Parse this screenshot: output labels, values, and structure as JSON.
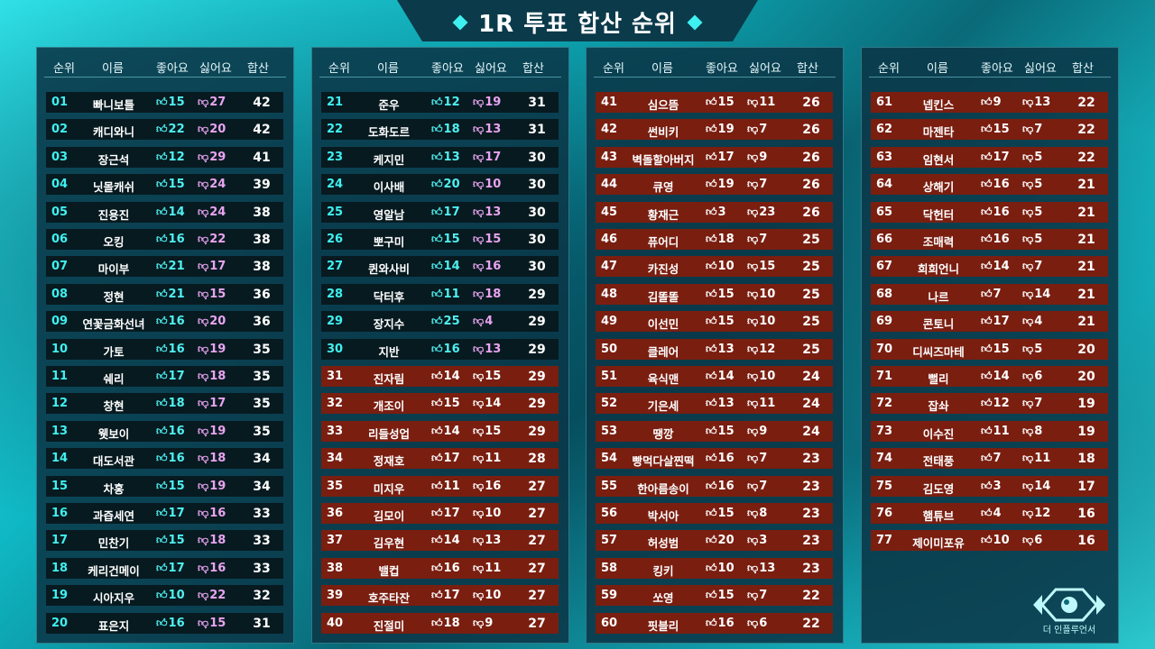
{
  "title": "1R 투표 합산 순위",
  "headers": {
    "rank": "순위",
    "name": "이름",
    "like": "좋아요",
    "dislike": "싫어요",
    "total": "합산"
  },
  "icons": {
    "like": "thumbs-up-icon",
    "dislike": "thumbs-down-icon"
  },
  "colors": {
    "top30_row": "#071a20",
    "bottom_row": "#7a1e10",
    "like": "#4ff0f0",
    "dislike": "#e9a4f0"
  },
  "columns": [
    [
      {
        "rank": "01",
        "name": "빠니보틀",
        "like": "15",
        "dislike": "27",
        "total": "42",
        "style": "t"
      },
      {
        "rank": "02",
        "name": "캐디와니",
        "like": "22",
        "dislike": "20",
        "total": "42",
        "style": "t"
      },
      {
        "rank": "03",
        "name": "장근석",
        "like": "12",
        "dislike": "29",
        "total": "41",
        "style": "t"
      },
      {
        "rank": "04",
        "name": "닛몰캐쉬",
        "like": "15",
        "dislike": "24",
        "total": "39",
        "style": "t"
      },
      {
        "rank": "05",
        "name": "진용진",
        "like": "14",
        "dislike": "24",
        "total": "38",
        "style": "t"
      },
      {
        "rank": "06",
        "name": "오킹",
        "like": "16",
        "dislike": "22",
        "total": "38",
        "style": "t"
      },
      {
        "rank": "07",
        "name": "마이부",
        "like": "21",
        "dislike": "17",
        "total": "38",
        "style": "t"
      },
      {
        "rank": "08",
        "name": "정현",
        "like": "21",
        "dislike": "15",
        "total": "36",
        "style": "t"
      },
      {
        "rank": "09",
        "name": "연꽃금화선녀",
        "like": "16",
        "dislike": "20",
        "total": "36",
        "style": "t"
      },
      {
        "rank": "10",
        "name": "가토",
        "like": "16",
        "dislike": "19",
        "total": "35",
        "style": "t"
      },
      {
        "rank": "11",
        "name": "쉐리",
        "like": "17",
        "dislike": "18",
        "total": "35",
        "style": "t"
      },
      {
        "rank": "12",
        "name": "창현",
        "like": "18",
        "dislike": "17",
        "total": "35",
        "style": "t"
      },
      {
        "rank": "13",
        "name": "웻보이",
        "like": "16",
        "dislike": "19",
        "total": "35",
        "style": "t"
      },
      {
        "rank": "14",
        "name": "대도서관",
        "like": "16",
        "dislike": "18",
        "total": "34",
        "style": "t"
      },
      {
        "rank": "15",
        "name": "차홍",
        "like": "15",
        "dislike": "19",
        "total": "34",
        "style": "t"
      },
      {
        "rank": "16",
        "name": "과즙세연",
        "like": "17",
        "dislike": "16",
        "total": "33",
        "style": "t"
      },
      {
        "rank": "17",
        "name": "민찬기",
        "like": "15",
        "dislike": "18",
        "total": "33",
        "style": "t"
      },
      {
        "rank": "18",
        "name": "케리건메이",
        "like": "17",
        "dislike": "16",
        "total": "33",
        "style": "t"
      },
      {
        "rank": "19",
        "name": "시아지우",
        "like": "10",
        "dislike": "22",
        "total": "32",
        "style": "t"
      },
      {
        "rank": "20",
        "name": "표은지",
        "like": "16",
        "dislike": "15",
        "total": "31",
        "style": "t"
      }
    ],
    [
      {
        "rank": "21",
        "name": "준우",
        "like": "12",
        "dislike": "19",
        "total": "31",
        "style": "t"
      },
      {
        "rank": "22",
        "name": "도화도르",
        "like": "18",
        "dislike": "13",
        "total": "31",
        "style": "t"
      },
      {
        "rank": "23",
        "name": "케지민",
        "like": "13",
        "dislike": "17",
        "total": "30",
        "style": "t"
      },
      {
        "rank": "24",
        "name": "이사배",
        "like": "20",
        "dislike": "10",
        "total": "30",
        "style": "t"
      },
      {
        "rank": "25",
        "name": "영알남",
        "like": "17",
        "dislike": "13",
        "total": "30",
        "style": "t"
      },
      {
        "rank": "26",
        "name": "뽀구미",
        "like": "15",
        "dislike": "15",
        "total": "30",
        "style": "t"
      },
      {
        "rank": "27",
        "name": "퀸와사비",
        "like": "14",
        "dislike": "16",
        "total": "30",
        "style": "t"
      },
      {
        "rank": "28",
        "name": "닥터후",
        "like": "11",
        "dislike": "18",
        "total": "29",
        "style": "t"
      },
      {
        "rank": "29",
        "name": "장지수",
        "like": "25",
        "dislike": "4",
        "total": "29",
        "style": "t"
      },
      {
        "rank": "30",
        "name": "지반",
        "like": "16",
        "dislike": "13",
        "total": "29",
        "style": "t"
      },
      {
        "rank": "31",
        "name": "진자림",
        "like": "14",
        "dislike": "15",
        "total": "29",
        "style": "r"
      },
      {
        "rank": "32",
        "name": "개조이",
        "like": "15",
        "dislike": "14",
        "total": "29",
        "style": "r"
      },
      {
        "rank": "33",
        "name": "리들성업",
        "like": "14",
        "dislike": "15",
        "total": "29",
        "style": "r"
      },
      {
        "rank": "34",
        "name": "정재호",
        "like": "17",
        "dislike": "11",
        "total": "28",
        "style": "r"
      },
      {
        "rank": "35",
        "name": "미지우",
        "like": "11",
        "dislike": "16",
        "total": "27",
        "style": "r"
      },
      {
        "rank": "36",
        "name": "김모이",
        "like": "17",
        "dislike": "10",
        "total": "27",
        "style": "r"
      },
      {
        "rank": "37",
        "name": "김우현",
        "like": "14",
        "dislike": "13",
        "total": "27",
        "style": "r"
      },
      {
        "rank": "38",
        "name": "밸컵",
        "like": "16",
        "dislike": "11",
        "total": "27",
        "style": "r"
      },
      {
        "rank": "39",
        "name": "호주타잔",
        "like": "17",
        "dislike": "10",
        "total": "27",
        "style": "r"
      },
      {
        "rank": "40",
        "name": "진절미",
        "like": "18",
        "dislike": "9",
        "total": "27",
        "style": "r"
      }
    ],
    [
      {
        "rank": "41",
        "name": "심으뜸",
        "like": "15",
        "dislike": "11",
        "total": "26",
        "style": "r"
      },
      {
        "rank": "42",
        "name": "썬비키",
        "like": "19",
        "dislike": "7",
        "total": "26",
        "style": "r"
      },
      {
        "rank": "43",
        "name": "벽돌할아버지",
        "like": "17",
        "dislike": "9",
        "total": "26",
        "style": "r"
      },
      {
        "rank": "44",
        "name": "큐영",
        "like": "19",
        "dislike": "7",
        "total": "26",
        "style": "r"
      },
      {
        "rank": "45",
        "name": "황재근",
        "like": "3",
        "dislike": "23",
        "total": "26",
        "style": "r"
      },
      {
        "rank": "46",
        "name": "퓨어디",
        "like": "18",
        "dislike": "7",
        "total": "25",
        "style": "r"
      },
      {
        "rank": "47",
        "name": "카진성",
        "like": "10",
        "dislike": "15",
        "total": "25",
        "style": "r"
      },
      {
        "rank": "48",
        "name": "김똘똘",
        "like": "15",
        "dislike": "10",
        "total": "25",
        "style": "r"
      },
      {
        "rank": "49",
        "name": "이선민",
        "like": "15",
        "dislike": "10",
        "total": "25",
        "style": "r"
      },
      {
        "rank": "50",
        "name": "클레어",
        "like": "13",
        "dislike": "12",
        "total": "25",
        "style": "r"
      },
      {
        "rank": "51",
        "name": "육식맨",
        "like": "14",
        "dislike": "10",
        "total": "24",
        "style": "r"
      },
      {
        "rank": "52",
        "name": "기은세",
        "like": "13",
        "dislike": "11",
        "total": "24",
        "style": "r"
      },
      {
        "rank": "53",
        "name": "땡깡",
        "like": "15",
        "dislike": "9",
        "total": "24",
        "style": "r"
      },
      {
        "rank": "54",
        "name": "빵먹다살찐떡",
        "like": "16",
        "dislike": "7",
        "total": "23",
        "style": "r"
      },
      {
        "rank": "55",
        "name": "한아름송이",
        "like": "16",
        "dislike": "7",
        "total": "23",
        "style": "r"
      },
      {
        "rank": "56",
        "name": "박서아",
        "like": "15",
        "dislike": "8",
        "total": "23",
        "style": "r"
      },
      {
        "rank": "57",
        "name": "허성범",
        "like": "20",
        "dislike": "3",
        "total": "23",
        "style": "r"
      },
      {
        "rank": "58",
        "name": "킹키",
        "like": "10",
        "dislike": "13",
        "total": "23",
        "style": "r"
      },
      {
        "rank": "59",
        "name": "쏘영",
        "like": "15",
        "dislike": "7",
        "total": "22",
        "style": "r"
      },
      {
        "rank": "60",
        "name": "핏블리",
        "like": "16",
        "dislike": "6",
        "total": "22",
        "style": "r"
      }
    ],
    [
      {
        "rank": "61",
        "name": "넵킨스",
        "like": "9",
        "dislike": "13",
        "total": "22",
        "style": "r"
      },
      {
        "rank": "62",
        "name": "마젠타",
        "like": "15",
        "dislike": "7",
        "total": "22",
        "style": "r"
      },
      {
        "rank": "63",
        "name": "임현서",
        "like": "17",
        "dislike": "5",
        "total": "22",
        "style": "r"
      },
      {
        "rank": "64",
        "name": "상해기",
        "like": "16",
        "dislike": "5",
        "total": "21",
        "style": "r"
      },
      {
        "rank": "65",
        "name": "닥헌터",
        "like": "16",
        "dislike": "5",
        "total": "21",
        "style": "r"
      },
      {
        "rank": "66",
        "name": "조매력",
        "like": "16",
        "dislike": "5",
        "total": "21",
        "style": "r"
      },
      {
        "rank": "67",
        "name": "희희언니",
        "like": "14",
        "dislike": "7",
        "total": "21",
        "style": "r"
      },
      {
        "rank": "68",
        "name": "나르",
        "like": "7",
        "dislike": "14",
        "total": "21",
        "style": "r"
      },
      {
        "rank": "69",
        "name": "콘토니",
        "like": "17",
        "dislike": "4",
        "total": "21",
        "style": "r"
      },
      {
        "rank": "70",
        "name": "디씨즈마테",
        "like": "15",
        "dislike": "5",
        "total": "20",
        "style": "r"
      },
      {
        "rank": "71",
        "name": "뻘리",
        "like": "14",
        "dislike": "6",
        "total": "20",
        "style": "r"
      },
      {
        "rank": "72",
        "name": "잡솨",
        "like": "12",
        "dislike": "7",
        "total": "19",
        "style": "r"
      },
      {
        "rank": "73",
        "name": "이수진",
        "like": "11",
        "dislike": "8",
        "total": "19",
        "style": "r"
      },
      {
        "rank": "74",
        "name": "전태풍",
        "like": "7",
        "dislike": "11",
        "total": "18",
        "style": "r"
      },
      {
        "rank": "75",
        "name": "김도영",
        "like": "3",
        "dislike": "14",
        "total": "17",
        "style": "r"
      },
      {
        "rank": "76",
        "name": "햄튜브",
        "like": "4",
        "dislike": "12",
        "total": "16",
        "style": "r"
      },
      {
        "rank": "77",
        "name": "제이미포유",
        "like": "10",
        "dislike": "6",
        "total": "16",
        "style": "r"
      }
    ]
  ],
  "logo": {
    "text": "더 인플루언서",
    "icon": "eye-logo-icon"
  }
}
